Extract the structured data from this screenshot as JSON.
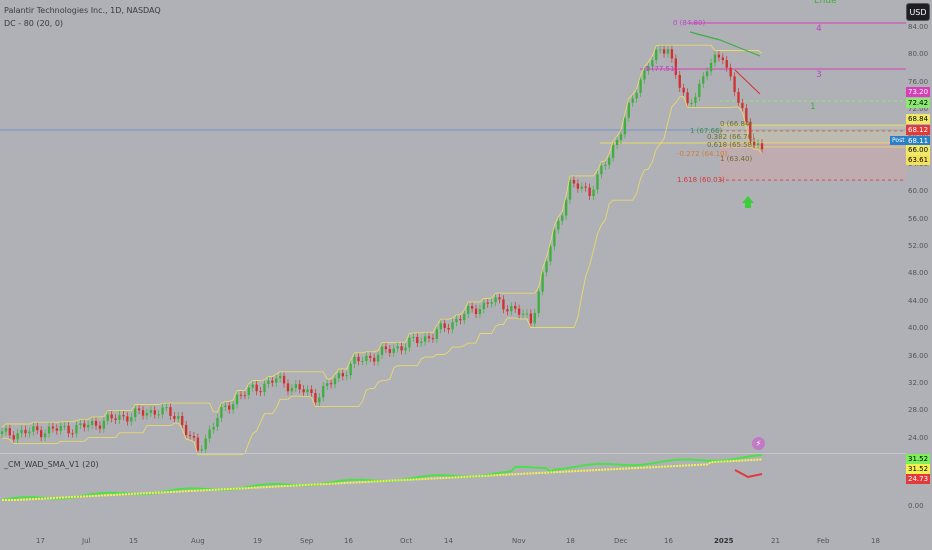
{
  "header": {
    "title": "Palantir Technologies Inc., 1D, NASDAQ",
    "indicator": "DC - 80 (20, 0)",
    "currency": "USD"
  },
  "oscillator": {
    "title": "_CM_WAD_SMA_V1 (20)"
  },
  "price_axis_ticks": [
    "84.00",
    "80.00",
    "76.00",
    "72.00",
    "68.00",
    "64.00",
    "60.00",
    "56.00",
    "52.00",
    "48.00",
    "44.00",
    "40.00",
    "36.00",
    "32.00",
    "28.00",
    "24.00",
    "20.00"
  ],
  "osc_axis_ticks": [
    "20.00",
    "0.00"
  ],
  "price_labels": [
    {
      "text": "73.20",
      "bg": "#d63fb6"
    },
    {
      "text": "72.42",
      "bg": "#8be870"
    },
    {
      "text": "68.84",
      "bg": "#f0e96a"
    },
    {
      "text": "68.12",
      "bg": "#e23a3a"
    },
    {
      "text": "68.11",
      "bg": "#2b7fc4"
    },
    {
      "text": "66.00",
      "bg": "#f0e96a"
    },
    {
      "text": "63.61",
      "bg": "#f3e25a"
    }
  ],
  "osc_labels": [
    {
      "text": "31.52",
      "bg": "#7cf05a"
    },
    {
      "text": "31.52",
      "bg": "#f5f050"
    },
    {
      "text": "24.73",
      "bg": "#e23a3a"
    }
  ],
  "post_tag": "Post",
  "fib_labels": [
    {
      "text": "0 (84.80)",
      "color": "#c03fc8"
    },
    {
      "text": "5 (77.51)",
      "color": "#c03fc8"
    },
    {
      "text": "0 (66.84)",
      "color": "#6f6f2f"
    },
    {
      "text": "1 (67.66)",
      "color": "#3f8f3f"
    },
    {
      "text": "0.382 (66.70)",
      "color": "#6f6f2f"
    },
    {
      "text": "0.618 (65.58)",
      "color": "#6f6f2f"
    },
    {
      "text": "-0.272 (64.10)",
      "color": "#d87a2f"
    },
    {
      "text": "1 (63.40)",
      "color": "#6f6f2f"
    },
    {
      "text": "1.618 (60.03)",
      "color": "#d23a3a"
    }
  ],
  "wave_labels": [
    "Ende",
    "4",
    "3",
    "1"
  ],
  "x_ticks": [
    "17",
    "Jul",
    "15",
    "Aug",
    "19",
    "Sep",
    "16",
    "Oct",
    "14",
    "Nov",
    "18",
    "Dec",
    "16",
    "2025",
    "21",
    "Feb",
    "18"
  ],
  "colors": {
    "background": "#b0b1b7",
    "up": "#3eaf3e",
    "down": "#d23030",
    "donchian": "#e8d96a",
    "wad_up": "#4be04b",
    "wad_down": "#e23a3a",
    "wad_sma": "#f5f050"
  }
}
